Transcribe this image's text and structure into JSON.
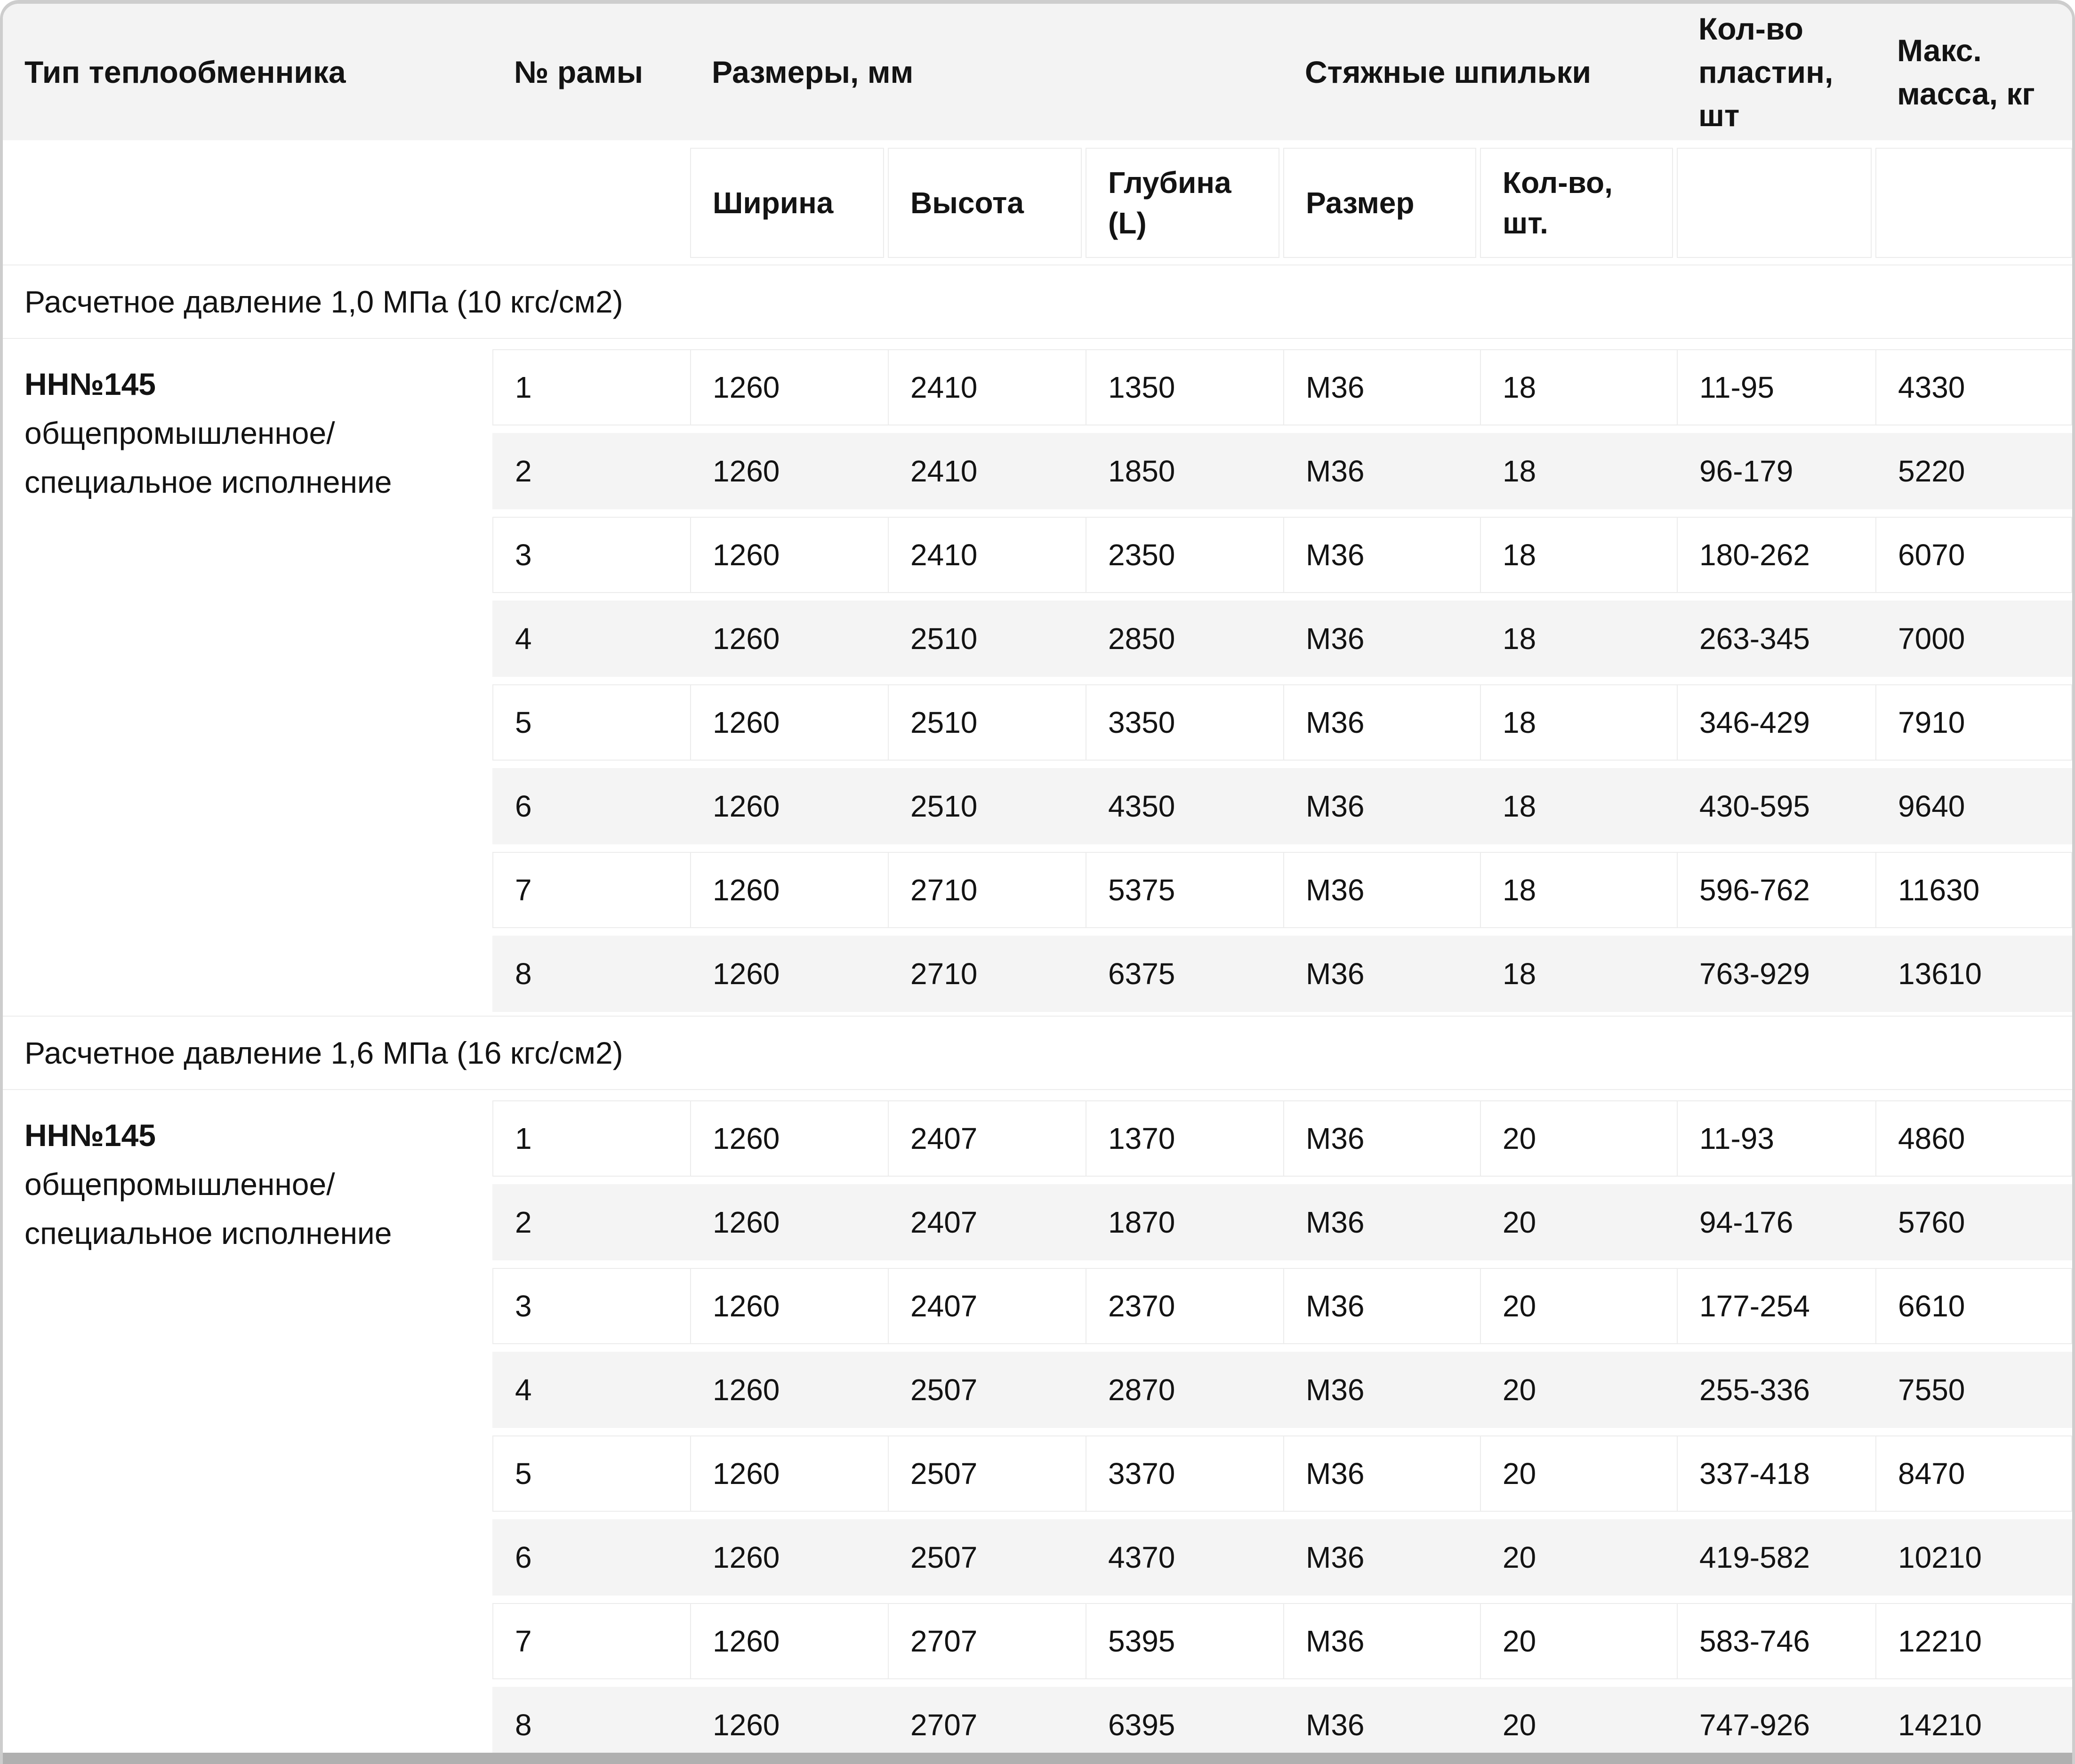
{
  "table": {
    "header": {
      "type": "Тип теплообменника",
      "frame": "№ рамы",
      "dimensions": "Размеры, мм",
      "studs": "Стяжные шпильки",
      "plates": "Кол-во\nпластин,\nшт",
      "mass": "Макс.\nмасса, кг"
    },
    "subheader": {
      "width": "Ширина",
      "height": "Высота",
      "depth": "Глубина\n(L)",
      "size": "Размер",
      "count": "Кол-во,\nшт."
    },
    "sections": [
      {
        "title": "Расчетное давление 1,0 МПа (10 кгс/см2)",
        "type_name": "НН№145",
        "type_desc": "общепромышленное/\nспециальное исполнение",
        "rows": [
          [
            "1",
            "1260",
            "2410",
            "1350",
            "М36",
            "18",
            "11-95",
            "4330"
          ],
          [
            "2",
            "1260",
            "2410",
            "1850",
            "М36",
            "18",
            "96-179",
            "5220"
          ],
          [
            "3",
            "1260",
            "2410",
            "2350",
            "М36",
            "18",
            "180-262",
            "6070"
          ],
          [
            "4",
            "1260",
            "2510",
            "2850",
            "М36",
            "18",
            "263-345",
            "7000"
          ],
          [
            "5",
            "1260",
            "2510",
            "3350",
            "М36",
            "18",
            "346-429",
            "7910"
          ],
          [
            "6",
            "1260",
            "2510",
            "4350",
            "М36",
            "18",
            "430-595",
            "9640"
          ],
          [
            "7",
            "1260",
            "2710",
            "5375",
            "М36",
            "18",
            "596-762",
            "11630"
          ],
          [
            "8",
            "1260",
            "2710",
            "6375",
            "М36",
            "18",
            "763-929",
            "13610"
          ]
        ]
      },
      {
        "title": "Расчетное давление 1,6 МПа (16 кгс/см2)",
        "type_name": "НН№145",
        "type_desc": "общепромышленное/\nспециальное исполнение",
        "rows": [
          [
            "1",
            "1260",
            "2407",
            "1370",
            "М36",
            "20",
            "11-93",
            "4860"
          ],
          [
            "2",
            "1260",
            "2407",
            "1870",
            "М36",
            "20",
            "94-176",
            "5760"
          ],
          [
            "3",
            "1260",
            "2407",
            "2370",
            "М36",
            "20",
            "177-254",
            "6610"
          ],
          [
            "4",
            "1260",
            "2507",
            "2870",
            "М36",
            "20",
            "255-336",
            "7550"
          ],
          [
            "5",
            "1260",
            "2507",
            "3370",
            "М36",
            "20",
            "337-418",
            "8470"
          ],
          [
            "6",
            "1260",
            "2507",
            "4370",
            "М36",
            "20",
            "419-582",
            "10210"
          ],
          [
            "7",
            "1260",
            "2707",
            "5395",
            "М36",
            "20",
            "583-746",
            "12210"
          ],
          [
            "8",
            "1260",
            "2707",
            "6395",
            "М36",
            "20",
            "747-926",
            "14210"
          ]
        ]
      }
    ]
  }
}
